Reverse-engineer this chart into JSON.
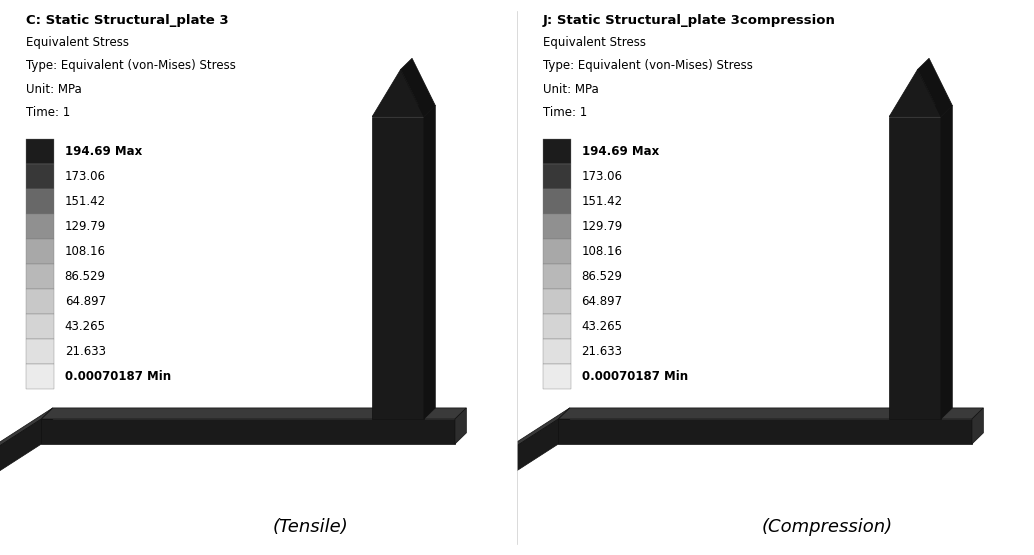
{
  "left_title_bold": "C: Static Structural_plate 3",
  "right_title_bold": "J: Static Structural_plate 3compression",
  "subtitle_lines": [
    "Equivalent Stress",
    "Type: Equivalent (von-Mises) Stress",
    "Unit: MPa",
    "Time: 1"
  ],
  "legend_labels": [
    "194.69 Max",
    "173.06",
    "151.42",
    "129.79",
    "108.16",
    "86.529",
    "64.897",
    "43.265",
    "21.633",
    "0.00070187 Min"
  ],
  "legend_bold": [
    true,
    false,
    false,
    false,
    false,
    false,
    false,
    false,
    false,
    true
  ],
  "colorbar_colors": [
    "#1c1c1c",
    "#383838",
    "#686868",
    "#909090",
    "#a8a8a8",
    "#b8b8b8",
    "#c8c8c8",
    "#d4d4d4",
    "#e0e0e0",
    "#ebebeb"
  ],
  "caption_left": "(Tensile)",
  "caption_right": "(Compression)",
  "bg_color": "#ffffff",
  "text_color": "#000000",
  "title_fontsize": 9.5,
  "label_fontsize": 8.5,
  "caption_fontsize": 13,
  "bar_fontsize": 8.5
}
